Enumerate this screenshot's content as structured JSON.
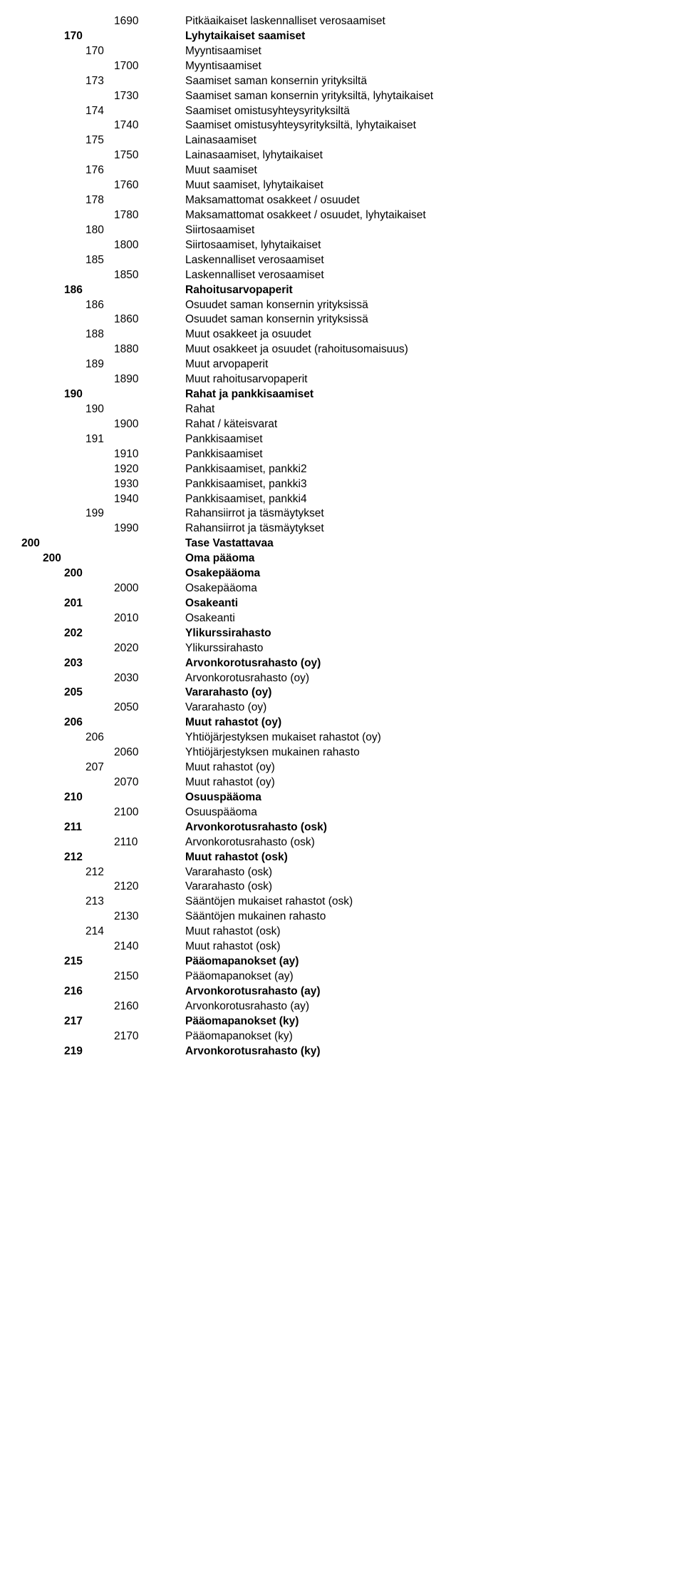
{
  "rows": [
    {
      "indent": 4,
      "bold": false,
      "code": "1690",
      "label": "Pitkäaikaiset laskennalliset verosaamiset"
    },
    {
      "indent": 2,
      "bold": true,
      "code": "170",
      "label": "Lyhytaikaiset saamiset"
    },
    {
      "indent": 3,
      "bold": false,
      "code": "170",
      "label": "Myyntisaamiset"
    },
    {
      "indent": 4,
      "bold": false,
      "code": "1700",
      "label": "Myyntisaamiset"
    },
    {
      "indent": 3,
      "bold": false,
      "code": "173",
      "label": "Saamiset saman konsernin yrityksiltä"
    },
    {
      "indent": 4,
      "bold": false,
      "code": "1730",
      "label": "Saamiset saman konsernin yrityksiltä, lyhytaikaiset"
    },
    {
      "indent": 3,
      "bold": false,
      "code": "174",
      "label": "Saamiset omistusyhteysyrityksiltä"
    },
    {
      "indent": 4,
      "bold": false,
      "code": "1740",
      "label": "Saamiset omistusyhteysyrityksiltä, lyhytaikaiset"
    },
    {
      "indent": 3,
      "bold": false,
      "code": "175",
      "label": "Lainasaamiset"
    },
    {
      "indent": 4,
      "bold": false,
      "code": "1750",
      "label": "Lainasaamiset, lyhytaikaiset"
    },
    {
      "indent": 3,
      "bold": false,
      "code": "176",
      "label": "Muut saamiset"
    },
    {
      "indent": 4,
      "bold": false,
      "code": "1760",
      "label": "Muut saamiset, lyhytaikaiset"
    },
    {
      "indent": 3,
      "bold": false,
      "code": "178",
      "label": "Maksamattomat osakkeet / osuudet"
    },
    {
      "indent": 4,
      "bold": false,
      "code": "1780",
      "label": "Maksamattomat osakkeet / osuudet, lyhytaikaiset"
    },
    {
      "indent": 3,
      "bold": false,
      "code": "180",
      "label": "Siirtosaamiset"
    },
    {
      "indent": 4,
      "bold": false,
      "code": "1800",
      "label": "Siirtosaamiset, lyhytaikaiset"
    },
    {
      "indent": 3,
      "bold": false,
      "code": "185",
      "label": "Laskennalliset verosaamiset"
    },
    {
      "indent": 4,
      "bold": false,
      "code": "1850",
      "label": "Laskennalliset verosaamiset"
    },
    {
      "indent": 2,
      "bold": true,
      "code": "186",
      "label": "Rahoitusarvopaperit"
    },
    {
      "indent": 3,
      "bold": false,
      "code": "186",
      "label": "Osuudet saman konsernin yrityksissä"
    },
    {
      "indent": 4,
      "bold": false,
      "code": "1860",
      "label": "Osuudet saman konsernin yrityksissä"
    },
    {
      "indent": 3,
      "bold": false,
      "code": "188",
      "label": "Muut osakkeet ja osuudet"
    },
    {
      "indent": 4,
      "bold": false,
      "code": "1880",
      "label": "Muut osakkeet ja osuudet (rahoitusomaisuus)"
    },
    {
      "indent": 3,
      "bold": false,
      "code": "189",
      "label": "Muut arvopaperit"
    },
    {
      "indent": 4,
      "bold": false,
      "code": "1890",
      "label": "Muut rahoitusarvopaperit"
    },
    {
      "indent": 2,
      "bold": true,
      "code": "190",
      "label": "Rahat ja pankkisaamiset"
    },
    {
      "indent": 3,
      "bold": false,
      "code": "190",
      "label": "Rahat"
    },
    {
      "indent": 4,
      "bold": false,
      "code": "1900",
      "label": "Rahat / käteisvarat"
    },
    {
      "indent": 3,
      "bold": false,
      "code": "191",
      "label": "Pankkisaamiset"
    },
    {
      "indent": 4,
      "bold": false,
      "code": "1910",
      "label": "Pankkisaamiset"
    },
    {
      "indent": 4,
      "bold": false,
      "code": "1920",
      "label": "Pankkisaamiset, pankki2"
    },
    {
      "indent": 4,
      "bold": false,
      "code": "1930",
      "label": "Pankkisaamiset, pankki3"
    },
    {
      "indent": 4,
      "bold": false,
      "code": "1940",
      "label": "Pankkisaamiset, pankki4"
    },
    {
      "indent": 3,
      "bold": false,
      "code": "199",
      "label": "Rahansiirrot ja täsmäytykset"
    },
    {
      "indent": 4,
      "bold": false,
      "code": "1990",
      "label": "Rahansiirrot ja täsmäytykset"
    },
    {
      "indent": 0,
      "bold": true,
      "code": "200",
      "label": "Tase Vastattavaa"
    },
    {
      "indent": 1,
      "bold": true,
      "code": "200",
      "label": "Oma pääoma"
    },
    {
      "indent": 2,
      "bold": true,
      "code": "200",
      "label": "Osakepääoma"
    },
    {
      "indent": 4,
      "bold": false,
      "code": "2000",
      "label": "Osakepääoma"
    },
    {
      "indent": 2,
      "bold": true,
      "code": "201",
      "label": "Osakeanti"
    },
    {
      "indent": 4,
      "bold": false,
      "code": "2010",
      "label": "Osakeanti"
    },
    {
      "indent": 2,
      "bold": true,
      "code": "202",
      "label": "Ylikurssirahasto"
    },
    {
      "indent": 4,
      "bold": false,
      "code": "2020",
      "label": "Ylikurssirahasto"
    },
    {
      "indent": 2,
      "bold": true,
      "code": "203",
      "label": "Arvonkorotusrahasto (oy)"
    },
    {
      "indent": 4,
      "bold": false,
      "code": "2030",
      "label": "Arvonkorotusrahasto (oy)"
    },
    {
      "indent": 2,
      "bold": true,
      "code": "205",
      "label": "Vararahasto (oy)"
    },
    {
      "indent": 4,
      "bold": false,
      "code": "2050",
      "label": "Vararahasto (oy)"
    },
    {
      "indent": 2,
      "bold": true,
      "code": "206",
      "label": "Muut rahastot (oy)"
    },
    {
      "indent": 3,
      "bold": false,
      "code": "206",
      "label": "Yhtiöjärjestyksen mukaiset rahastot (oy)"
    },
    {
      "indent": 4,
      "bold": false,
      "code": "2060",
      "label": "Yhtiöjärjestyksen mukainen rahasto"
    },
    {
      "indent": 3,
      "bold": false,
      "code": "207",
      "label": "Muut rahastot (oy)"
    },
    {
      "indent": 4,
      "bold": false,
      "code": "2070",
      "label": "Muut rahastot (oy)"
    },
    {
      "indent": 2,
      "bold": true,
      "code": "210",
      "label": "Osuuspääoma"
    },
    {
      "indent": 4,
      "bold": false,
      "code": "2100",
      "label": "Osuuspääoma"
    },
    {
      "indent": 2,
      "bold": true,
      "code": "211",
      "label": "Arvonkorotusrahasto (osk)"
    },
    {
      "indent": 4,
      "bold": false,
      "code": "2110",
      "label": "Arvonkorotusrahasto (osk)"
    },
    {
      "indent": 2,
      "bold": true,
      "code": "212",
      "label": "Muut rahastot (osk)"
    },
    {
      "indent": 3,
      "bold": false,
      "code": "212",
      "label": "Vararahasto (osk)"
    },
    {
      "indent": 4,
      "bold": false,
      "code": "2120",
      "label": "Vararahasto (osk)"
    },
    {
      "indent": 3,
      "bold": false,
      "code": "213",
      "label": "Sääntöjen mukaiset rahastot (osk)"
    },
    {
      "indent": 4,
      "bold": false,
      "code": "2130",
      "label": "Sääntöjen mukainen rahasto"
    },
    {
      "indent": 3,
      "bold": false,
      "code": "214",
      "label": "Muut rahastot (osk)"
    },
    {
      "indent": 4,
      "bold": false,
      "code": "2140",
      "label": "Muut rahastot (osk)"
    },
    {
      "indent": 2,
      "bold": true,
      "code": "215",
      "label": "Pääomapanokset (ay)"
    },
    {
      "indent": 4,
      "bold": false,
      "code": "2150",
      "label": "Pääomapanokset (ay)"
    },
    {
      "indent": 2,
      "bold": true,
      "code": "216",
      "label": "Arvonkorotusrahasto (ay)"
    },
    {
      "indent": 4,
      "bold": false,
      "code": "2160",
      "label": "Arvonkorotusrahasto (ay)"
    },
    {
      "indent": 2,
      "bold": true,
      "code": "217",
      "label": "Pääomapanokset (ky)"
    },
    {
      "indent": 4,
      "bold": false,
      "code": "2170",
      "label": "Pääomapanokset (ky)"
    },
    {
      "indent": 2,
      "bold": true,
      "code": "219",
      "label": "Arvonkorotusrahasto (ky)"
    }
  ]
}
